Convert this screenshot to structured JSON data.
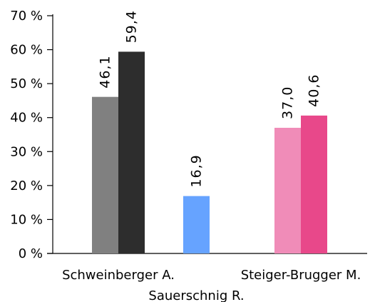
{
  "chart_data": {
    "type": "bar",
    "y_unit_suffix": " %",
    "ylim": [
      0,
      70
    ],
    "y_ticks": [
      0,
      10,
      20,
      30,
      40,
      50,
      60,
      70
    ],
    "grid": false,
    "legend": "none",
    "categories": [
      "Schweinberger A.",
      "Sauerschnig R.",
      "Steiger-Brugger M."
    ],
    "bars": [
      {
        "category": "Schweinberger A.",
        "value": 46.1,
        "label": "46,1",
        "color": "#808080"
      },
      {
        "category": "Schweinberger A.",
        "value": 59.4,
        "label": "59,4",
        "color": "#2d2d2d"
      },
      {
        "category": "Sauerschnig R.",
        "value": 16.9,
        "label": "16,9",
        "color": "#66a3ff"
      },
      {
        "category": "Steiger-Brugger M.",
        "value": 37.0,
        "label": "37,0",
        "color": "#f08cb8"
      },
      {
        "category": "Steiger-Brugger M.",
        "value": 40.6,
        "label": "40,6",
        "color": "#e8488a"
      }
    ]
  }
}
